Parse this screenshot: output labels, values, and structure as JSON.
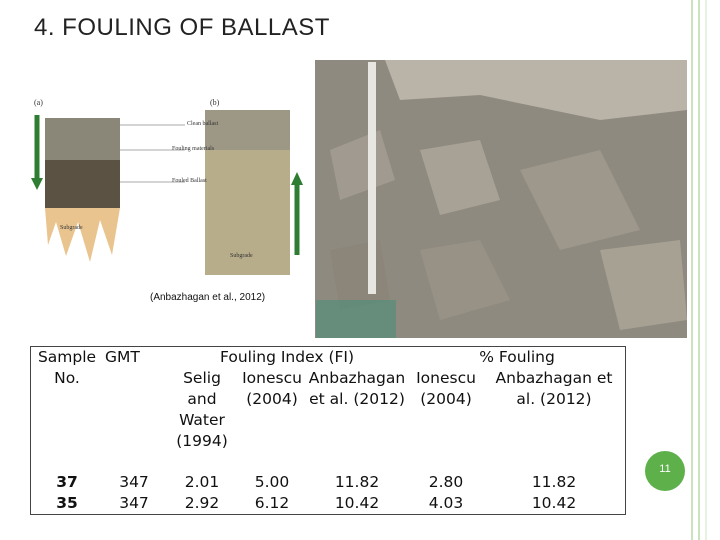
{
  "header": {
    "title": "4. FOULING OF BALLAST"
  },
  "figure": {
    "panel_a": "(a)",
    "panel_b": "(b)",
    "labels": [
      "Clean ballast",
      "Fouling materials",
      "Fouled Ballast",
      "Subgrade",
      "Subgrade"
    ],
    "caption": "(Anbazhagan et al., 2012)"
  },
  "table": {
    "header_top": [
      "Sample No.",
      "GMT",
      "Fouling Index (FI)",
      "% Fouling"
    ],
    "header_sub": [
      "Selig and Water (1994)",
      "Ionescu (2004)",
      "Anbazhagan et al. (2012)",
      "Ionescu (2004)",
      "Anbazhagan et al. (2012)"
    ],
    "rows": [
      [
        "37",
        "347",
        "2.01",
        "5.00",
        "11.82",
        "2.80",
        "11.82"
      ],
      [
        "35",
        "347",
        "2.92",
        "6.12",
        "10.42",
        "4.03",
        "10.42"
      ]
    ]
  },
  "page_number": "11"
}
